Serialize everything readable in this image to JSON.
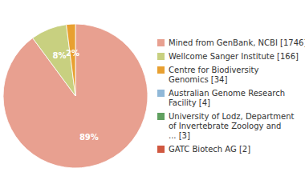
{
  "chart_data": {
    "type": "pie",
    "categories": [
      "Mined from GenBank, NCBI [1746]",
      "Wellcome Sanger Institute [166]",
      "Centre for Biodiversity\nGenomics [34]",
      "Australian Genome Research\nFacility [4]",
      "University of Lodz, Department\nof Invertebrate Zoology and\n... [3]",
      "GATC Biotech AG [2]"
    ],
    "values": [
      89,
      8,
      2,
      0,
      0,
      0
    ],
    "value_labels": [
      "89%",
      "8%",
      "2%",
      null,
      null,
      null
    ],
    "colors": [
      "#e8a090",
      "#c8d080",
      "#e8a030",
      "#90b8d8",
      "#60a060",
      "#d05840"
    ],
    "data_labels": true,
    "legend": "right"
  }
}
